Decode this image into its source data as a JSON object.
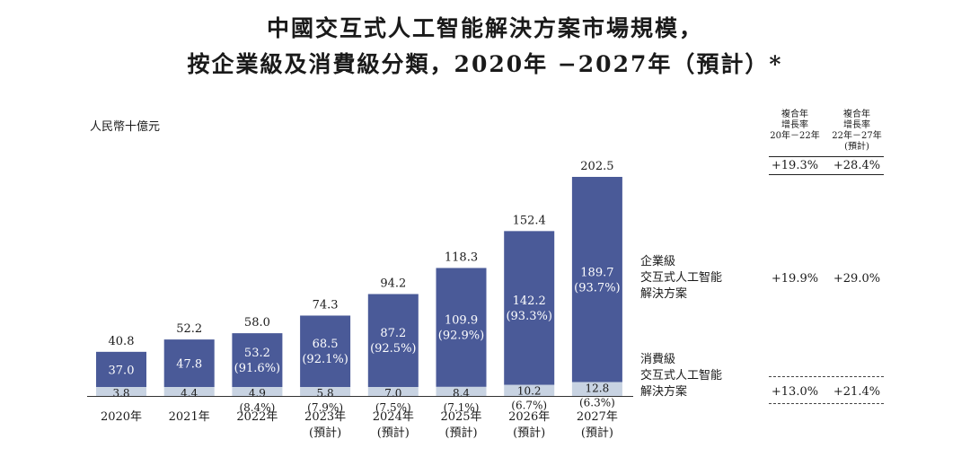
{
  "title_line1": "中國交互式人工智能解決方案市場規模，",
  "title_line2": "按企業級及消費級分類，2020年 −2027年（預計）*",
  "unit_label": "人民幣十億元",
  "colors": {
    "enterprise": "#4a5a98",
    "consumer": "#c8d3e2",
    "text": "#1a1a1a"
  },
  "chart_data": {
    "type": "bar",
    "stacked": true,
    "title": "中國交互式人工智能解決方案市場規模，按企業級及消費級分類，2020年 −2027年（預計）*",
    "ylabel": "人民幣十億元",
    "categories": [
      "2020年",
      "2021年",
      "2022年",
      "2023年",
      "2024年",
      "2025年",
      "2026年",
      "2027年"
    ],
    "category_sublabels": [
      "",
      "",
      "",
      "(預計)",
      "(預計)",
      "(預計)",
      "(預計)",
      "(預計)"
    ],
    "totals": [
      40.8,
      52.2,
      58.0,
      74.3,
      94.2,
      118.3,
      152.4,
      202.5
    ],
    "ylim": [
      0,
      202.5
    ],
    "series": [
      {
        "name": "消費級交互式人工智能解決方案",
        "values": [
          3.8,
          4.4,
          4.9,
          5.8,
          7.0,
          8.4,
          10.2,
          12.8
        ],
        "shares": [
          "",
          "",
          "(8.4%)",
          "(7.9%)",
          "(7.5%)",
          "(7.1%)",
          "(6.7%)",
          "(6.3%)"
        ]
      },
      {
        "name": "企業級交互式人工智能解決方案",
        "values": [
          37.0,
          47.8,
          53.2,
          68.5,
          87.2,
          109.9,
          142.2,
          189.7
        ],
        "shares": [
          "",
          "",
          "(91.6%)",
          "(92.1%)",
          "(92.5%)",
          "(92.9%)",
          "(93.3%)",
          "(93.7%)"
        ]
      }
    ]
  },
  "cagr": {
    "headers": [
      "複合年\n增長率\n20年－22年",
      "複合年\n增長率\n22年－27年\n(預計)"
    ],
    "total": [
      "+19.3%",
      "+28.4%"
    ],
    "enterprise": [
      "+19.9%",
      "+29.0%"
    ],
    "consumer": [
      "+13.0%",
      "+21.4%"
    ]
  },
  "legend": {
    "enterprise": "企業級\n交互式人工智能\n解決方案",
    "consumer": "消費級\n交互式人工智能\n解決方案"
  }
}
